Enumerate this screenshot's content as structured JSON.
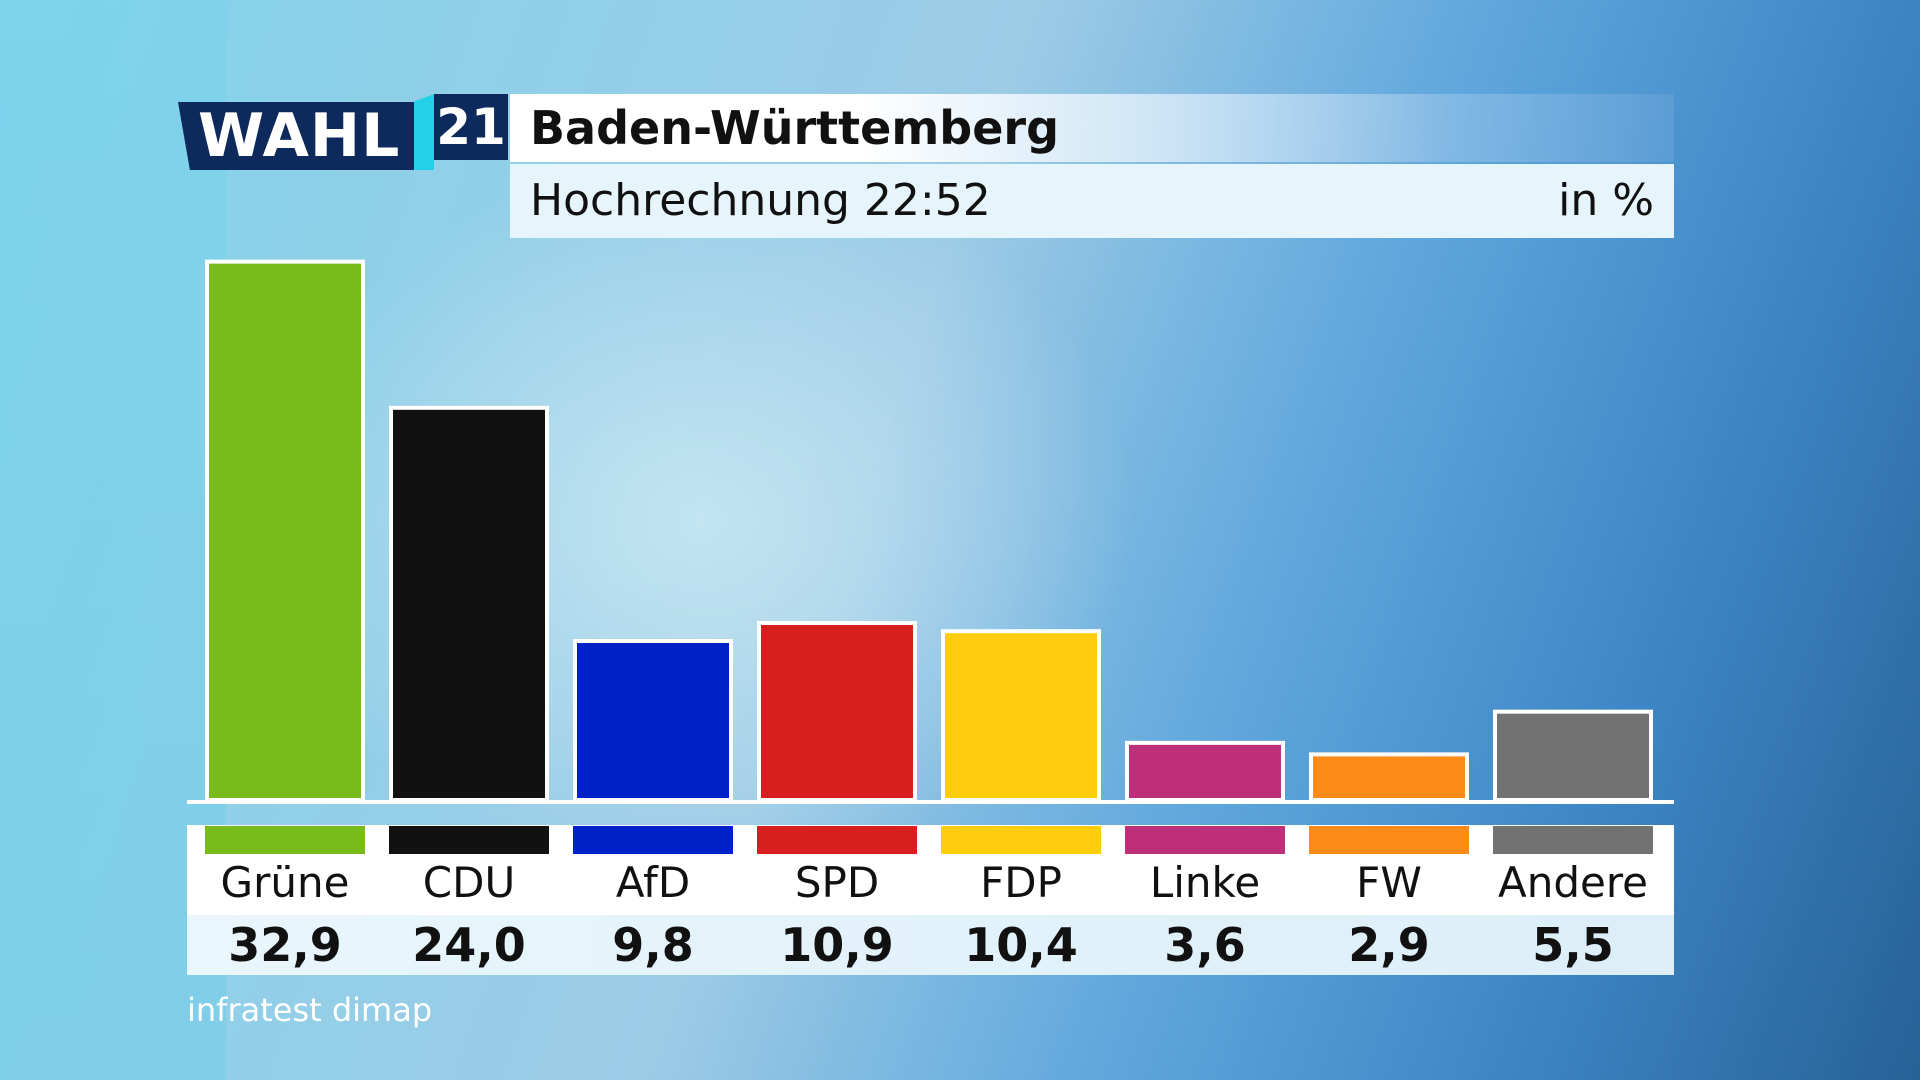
{
  "logo": {
    "wahl": "WAHL",
    "year": "21"
  },
  "header": {
    "title": "Baden-Württemberg",
    "subtitle": "Hochrechnung 22:52",
    "unit": "in %"
  },
  "source": "infratest dimap",
  "chart_data": {
    "type": "bar",
    "title": "Baden-Württemberg",
    "subtitle": "Hochrechnung 22:52",
    "unit": "in %",
    "categories": [
      "Grüne",
      "CDU",
      "AfD",
      "SPD",
      "FDP",
      "Linke",
      "FW",
      "Andere"
    ],
    "values": [
      32.9,
      24.0,
      9.8,
      10.9,
      10.4,
      3.6,
      2.9,
      5.5
    ],
    "value_labels": [
      "32,9",
      "24,0",
      "9,8",
      "10,9",
      "10,4",
      "3,6",
      "2,9",
      "5,5"
    ],
    "colors": [
      "#78bc1c",
      "#111111",
      "#0021c8",
      "#d81f1f",
      "#ffcc0e",
      "#bd2f78",
      "#fd8b18",
      "#727272"
    ],
    "ylim": [
      0,
      33
    ]
  }
}
